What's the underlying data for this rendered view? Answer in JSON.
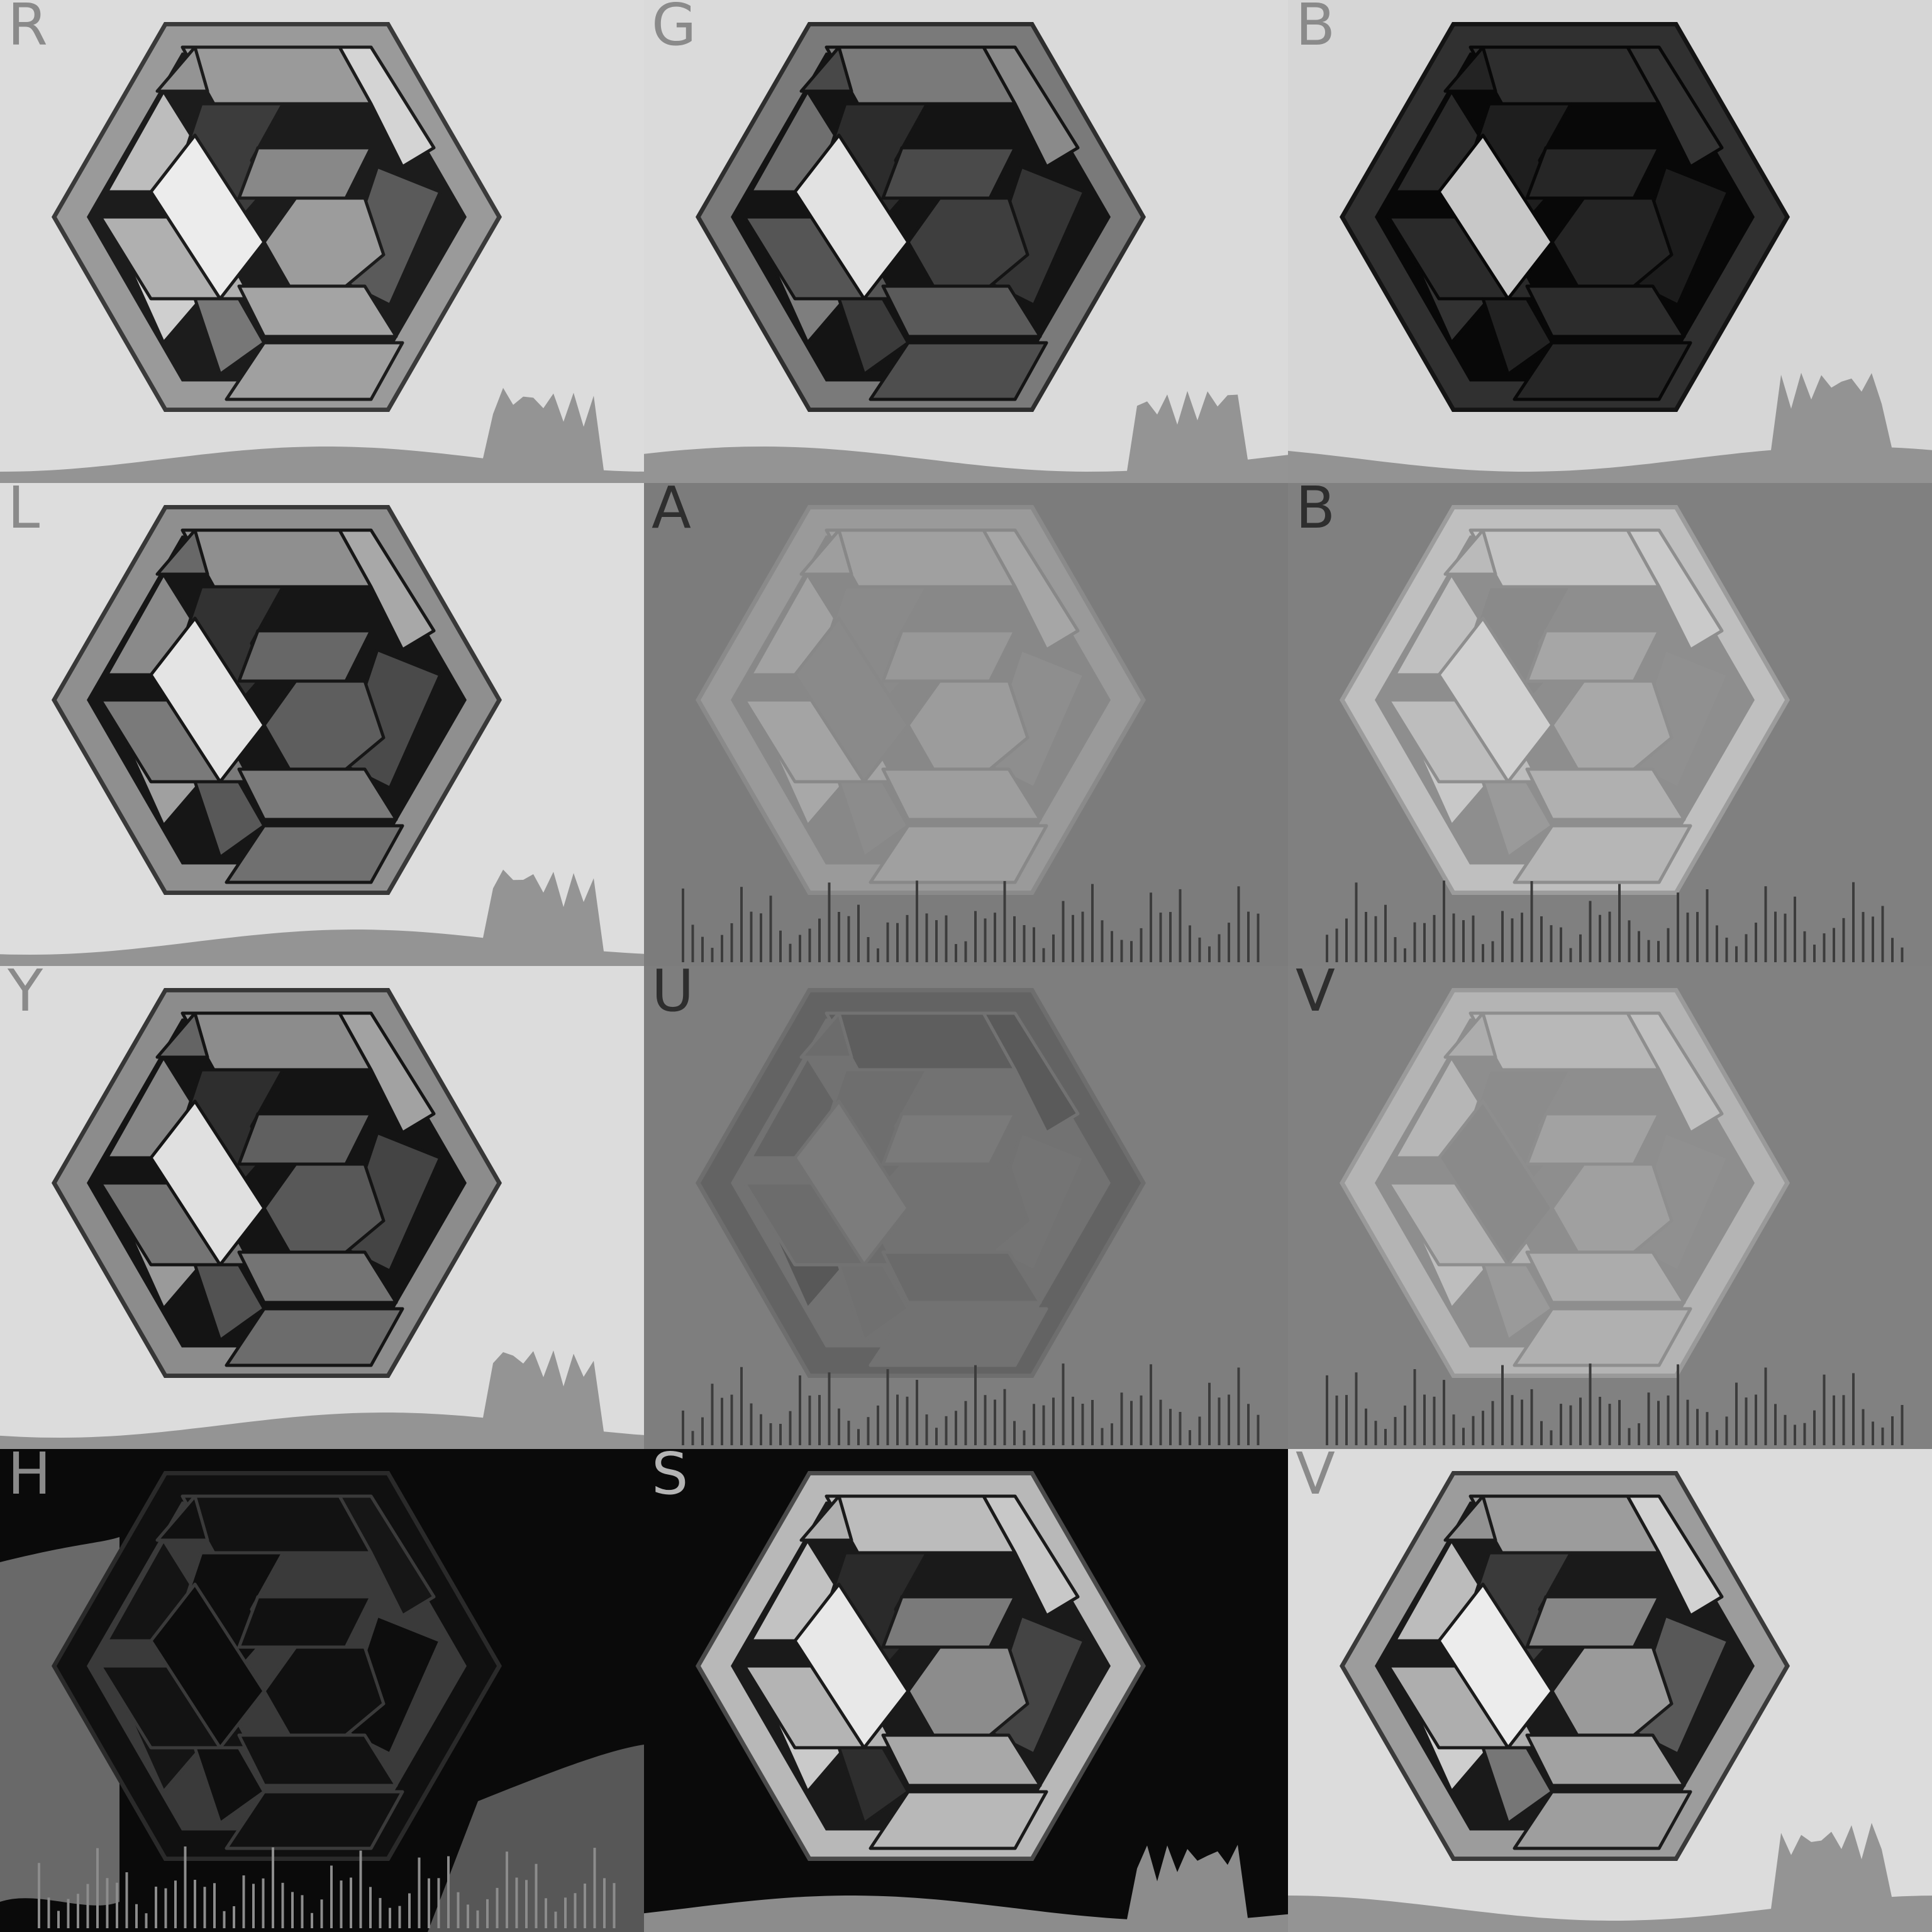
{
  "panels": [
    {
      "id": "R",
      "label": "R",
      "bg": "#dcdcdc",
      "frame": "#9a9a9a",
      "edge": "#3a3a3a",
      "gap": "#1c1c1c",
      "labelColor": "#8a8a8a",
      "hist": "#8c8c8c",
      "histType": "area",
      "pieces": [
        "#9a9a9a",
        "#d4d4d4",
        "#bdbdbd",
        "#3c3c3c",
        "#888888",
        "#5a5a5a",
        "#cfcfcf",
        "#b0b0b0",
        "#9c9c9c",
        "#777777",
        "#a4a4a4",
        "#ececec",
        "#a0a0a0",
        "#949494"
      ]
    },
    {
      "id": "G",
      "label": "G",
      "bg": "#dadada",
      "frame": "#7a7a7a",
      "edge": "#2e2e2e",
      "gap": "#141414",
      "labelColor": "#8a8a8a",
      "hist": "#8c8c8c",
      "histType": "area",
      "pieces": [
        "#7a7a7a",
        "#8a8a8a",
        "#6f6f6f",
        "#2c2c2c",
        "#4a4a4a",
        "#343434",
        "#7e7e7e",
        "#555555",
        "#3e3e3e",
        "#3a3a3a",
        "#5a5a5a",
        "#e2e2e2",
        "#4e4e4e",
        "#484848"
      ]
    },
    {
      "id": "B",
      "label": "B",
      "bg": "#d6d6d6",
      "frame": "#303030",
      "edge": "#141414",
      "gap": "#080808",
      "labelColor": "#8a8a8a",
      "hist": "#8c8c8c",
      "histType": "area",
      "pieces": [
        "#2e2e2e",
        "#333333",
        "#2a2a2a",
        "#1e1e1e",
        "#262626",
        "#1c1c1c",
        "#323232",
        "#2a2a2a",
        "#242424",
        "#222222",
        "#2c2c2c",
        "#c8c8c8",
        "#262626",
        "#232323"
      ]
    },
    {
      "id": "L",
      "label": "L",
      "bg": "#dddddd",
      "frame": "#8f8f8f",
      "edge": "#383838",
      "gap": "#161616",
      "labelColor": "#8a8a8a",
      "hist": "#8c8c8c",
      "histType": "area",
      "pieces": [
        "#8f8f8f",
        "#a8a8a8",
        "#8a8a8a",
        "#323232",
        "#676767",
        "#4a4a4a",
        "#a0a0a0",
        "#7a7a7a",
        "#5e5e5e",
        "#585858",
        "#7a7a7a",
        "#e4e4e4",
        "#707070",
        "#686868"
      ]
    },
    {
      "id": "A",
      "label": "A",
      "bg": "#7c7c7c",
      "frame": "#9a9a9a",
      "edge": "#8a8a8a",
      "gap": "#888888",
      "labelColor": "#2e2e2e",
      "hist": "#3c3c3c",
      "histType": "bars",
      "pieces": [
        "#a0a0a0",
        "#a6a6a6",
        "#a2a2a2",
        "#8a8a8a",
        "#989898",
        "#8e8e8e",
        "#a8a8a8",
        "#a4a4a4",
        "#9c9c9c",
        "#8c8c8c",
        "#9e9e9e",
        "#8a8a8a",
        "#a0a0a0",
        "#9e9e9e"
      ]
    },
    {
      "id": "Bb",
      "label": "B",
      "bg": "#808080",
      "frame": "#bfbfbf",
      "edge": "#9c9c9c",
      "gap": "#8e8e8e",
      "labelColor": "#2e2e2e",
      "hist": "#3c3c3c",
      "histType": "bars",
      "pieces": [
        "#c4c4c4",
        "#cacaca",
        "#c0c0c0",
        "#8a8a8a",
        "#a6a6a6",
        "#909090",
        "#c8c8c8",
        "#bdbdbd",
        "#a8a8a8",
        "#9a9a9a",
        "#b0b0b0",
        "#d0d0d0",
        "#b6b6b6",
        "#bababa"
      ]
    },
    {
      "id": "Y",
      "label": "Y",
      "bg": "#dcdcdc",
      "frame": "#8c8c8c",
      "edge": "#363636",
      "gap": "#141414",
      "labelColor": "#8a8a8a",
      "hist": "#8c8c8c",
      "histType": "area",
      "pieces": [
        "#8c8c8c",
        "#a2a2a2",
        "#868686",
        "#2e2e2e",
        "#606060",
        "#444444",
        "#9a9a9a",
        "#747474",
        "#585858",
        "#525252",
        "#747474",
        "#e0e0e0",
        "#6c6c6c",
        "#646464"
      ]
    },
    {
      "id": "U",
      "label": "U",
      "bg": "#7e7e7e",
      "frame": "#636363",
      "edge": "#6e6e6e",
      "gap": "#727272",
      "labelColor": "#2e2e2e",
      "hist": "#3c3c3c",
      "histType": "bars",
      "pieces": [
        "#5e5e5e",
        "#5a5a5a",
        "#646464",
        "#6e6e6e",
        "#7a7a7a",
        "#747474",
        "#585858",
        "#6c6c6c",
        "#727272",
        "#707070",
        "#6a6a6a",
        "#7c7c7c",
        "#727272",
        "#6c6c6c"
      ]
    },
    {
      "id": "Vyuv",
      "label": "V",
      "bg": "#818181",
      "frame": "#b4b4b4",
      "edge": "#9a9a9a",
      "gap": "#8e8e8e",
      "labelColor": "#2e2e2e",
      "hist": "#3c3c3c",
      "histType": "bars",
      "pieces": [
        "#b8b8b8",
        "#c0c0c0",
        "#b6b6b6",
        "#8c8c8c",
        "#a2a2a2",
        "#909090",
        "#bebebe",
        "#b2b2b2",
        "#a0a0a0",
        "#9a9a9a",
        "#acacac",
        "#8a8a8a",
        "#b0b0b0",
        "#adadad"
      ]
    },
    {
      "id": "H",
      "label": "H",
      "bg": "#0a0a0a",
      "frame": "#101010",
      "edge": "#2a2a2a",
      "gap": "#3a3a3a",
      "labelColor": "#8a8a8a",
      "hist": "#8c8c8c",
      "histType": "bars",
      "pieces": [
        "#121212",
        "#161616",
        "#141414",
        "#0e0e0e",
        "#111111",
        "#0d0d0d",
        "#151515",
        "#131313",
        "#101010",
        "#0f0f0f",
        "#121212",
        "#0c0c0c",
        "#111111",
        "#101010"
      ]
    },
    {
      "id": "S",
      "label": "S",
      "bg": "#0a0a0a",
      "frame": "#b8b8b8",
      "edge": "#4a4a4a",
      "gap": "#1a1a1a",
      "labelColor": "#b4b4b4",
      "hist": "#9a9a9a",
      "histType": "area",
      "pieces": [
        "#bcbcbc",
        "#c8c8c8",
        "#c2c2c2",
        "#2a2a2a",
        "#7a7a7a",
        "#444444",
        "#cacaca",
        "#b4b4b4",
        "#8c8c8c",
        "#2e2e2e",
        "#a8a8a8",
        "#e8e8e8",
        "#b8b8b8",
        "#b0b0b0"
      ]
    },
    {
      "id": "Vhsv",
      "label": "V",
      "bg": "#dcdcdc",
      "frame": "#9c9c9c",
      "edge": "#3a3a3a",
      "gap": "#1a1a1a",
      "labelColor": "#8a8a8a",
      "hist": "#8c8c8c",
      "histType": "area",
      "pieces": [
        "#9c9c9c",
        "#d2d2d2",
        "#bcbcbc",
        "#3a3a3a",
        "#868686",
        "#585858",
        "#cecece",
        "#aeaeae",
        "#9a9a9a",
        "#767676",
        "#a2a2a2",
        "#ececec",
        "#9e9e9e",
        "#929292"
      ]
    }
  ]
}
